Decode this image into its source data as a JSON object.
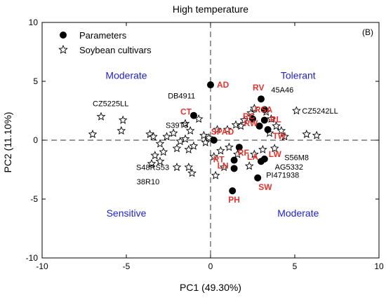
{
  "chart_data": {
    "type": "scatter",
    "title": "High temperature",
    "panel_label": "(B)",
    "xlabel": "PC1 (49.30%)",
    "ylabel": "PC2 (11.10%)",
    "xlim": [
      -10,
      10
    ],
    "ylim": [
      -10,
      10
    ],
    "xticks": [
      -10,
      -5,
      0,
      5,
      10
    ],
    "yticks": [
      -10,
      -5,
      0,
      5,
      10
    ],
    "grid": false,
    "reference_lines": {
      "x": 0,
      "y": 0,
      "style": "dashed"
    },
    "legend": {
      "placement": "top-left",
      "entries": [
        {
          "label": "Parameters",
          "marker": "filled-circle"
        },
        {
          "label": "Soybean cultivars",
          "marker": "open-star"
        }
      ]
    },
    "quadrant_labels": [
      {
        "text": "Moderate",
        "x": -5,
        "y": 5.2
      },
      {
        "text": "Tolerant",
        "x": 5.2,
        "y": 5.2
      },
      {
        "text": "Sensitive",
        "x": -5,
        "y": -6.5
      },
      {
        "text": "Moderate",
        "x": 5.2,
        "y": -6.5
      }
    ],
    "colors": {
      "parameter_label": "#e8332f",
      "quadrant_label": "#1f1fd6",
      "marker": "#000000"
    },
    "series": [
      {
        "name": "Parameters",
        "points": [
          {
            "label": "AD",
            "x": 0.0,
            "y": 4.7
          },
          {
            "label": "RV",
            "x": 3.0,
            "y": 3.5
          },
          {
            "label": "RSA",
            "x": 3.2,
            "y": 2.6
          },
          {
            "label": "CT",
            "x": -1.0,
            "y": 2.1
          },
          {
            "label": "RC",
            "x": 2.5,
            "y": 1.8
          },
          {
            "label": "RL",
            "x": 3.2,
            "y": 1.7
          },
          {
            "label": "RW",
            "x": 2.9,
            "y": 1.2
          },
          {
            "label": "TW",
            "x": 3.4,
            "y": 0.9
          },
          {
            "label": "SPAD",
            "x": 0.2,
            "y": 0.0
          },
          {
            "label": "RF",
            "x": 1.7,
            "y": -0.6
          },
          {
            "label": "LW",
            "x": 3.2,
            "y": -1.6
          },
          {
            "label": "LA",
            "x": 3.0,
            "y": -1.8
          },
          {
            "label": "RT",
            "x": 1.4,
            "y": -1.7
          },
          {
            "label": "LN",
            "x": 1.4,
            "y": -2.4
          },
          {
            "label": "SW",
            "x": 2.8,
            "y": -3.2
          },
          {
            "label": "PH",
            "x": 1.3,
            "y": -4.3
          }
        ]
      },
      {
        "name": "Soybean cultivars",
        "points": [
          {
            "x": -7.0,
            "y": 0.5
          },
          {
            "x": -6.5,
            "y": 2.0
          },
          {
            "x": -5.2,
            "y": 1.7
          },
          {
            "x": -5.3,
            "y": 0.8
          },
          {
            "x": -3.6,
            "y": 0.5
          },
          {
            "x": -3.4,
            "y": 0.3
          },
          {
            "x": -3.0,
            "y": -0.3
          },
          {
            "x": -2.6,
            "y": 0.3
          },
          {
            "x": -2.2,
            "y": 0.6
          },
          {
            "x": -1.8,
            "y": -0.1
          },
          {
            "x": -1.5,
            "y": 0.1
          },
          {
            "x": -1.2,
            "y": 0.8
          },
          {
            "x": -1.5,
            "y": 1.4
          },
          {
            "x": -0.7,
            "y": 1.8
          },
          {
            "x": -0.4,
            "y": 0.4
          },
          {
            "x": -0.1,
            "y": 0.2
          },
          {
            "x": -0.3,
            "y": -0.2
          },
          {
            "x": -1.0,
            "y": -0.5
          },
          {
            "x": -1.3,
            "y": -0.8
          },
          {
            "x": -2.0,
            "y": -0.7
          },
          {
            "x": -2.8,
            "y": -1.0
          },
          {
            "x": -3.3,
            "y": -1.3
          },
          {
            "x": -3.0,
            "y": -1.8
          },
          {
            "x": -3.5,
            "y": -2.0
          },
          {
            "x": -2.0,
            "y": -2.3
          },
          {
            "x": -1.3,
            "y": -2.3
          },
          {
            "x": -1.1,
            "y": -2.8
          },
          {
            "x": 0.3,
            "y": -3.0
          },
          {
            "x": 0.8,
            "y": -2.3
          },
          {
            "x": 0.2,
            "y": -1.4
          },
          {
            "x": 0.6,
            "y": -0.9
          },
          {
            "x": 0.4,
            "y": 0.9
          },
          {
            "x": 1.0,
            "y": 0.9
          },
          {
            "x": 1.5,
            "y": 1.3
          },
          {
            "x": 1.8,
            "y": 1.2
          },
          {
            "x": 2.0,
            "y": 1.7
          },
          {
            "x": 2.4,
            "y": 2.3
          },
          {
            "x": 2.6,
            "y": 2.7
          },
          {
            "x": 3.3,
            "y": 2.4
          },
          {
            "x": 3.6,
            "y": 1.8
          },
          {
            "x": 3.9,
            "y": 1.2
          },
          {
            "x": 3.5,
            "y": 0.6
          },
          {
            "x": 4.2,
            "y": 0.8
          },
          {
            "x": 4.4,
            "y": 0.3
          },
          {
            "x": 3.8,
            "y": -0.7
          },
          {
            "x": 3.1,
            "y": -0.8
          },
          {
            "x": 2.6,
            "y": -1.2
          },
          {
            "x": 2.3,
            "y": -2.2
          },
          {
            "x": 1.6,
            "y": -1.2
          },
          {
            "x": 1.1,
            "y": -0.6
          },
          {
            "x": 5.1,
            "y": 2.5
          },
          {
            "x": 5.7,
            "y": 0.5
          },
          {
            "x": 6.3,
            "y": 0.4
          }
        ],
        "named_points": [
          {
            "label": "CZ5225LL",
            "x": -6.5,
            "y": 2.0
          },
          {
            "label": "DB4911",
            "x": -1.2,
            "y": 3.3
          },
          {
            "label": "S39T3",
            "x": -1.5,
            "y": 1.4
          },
          {
            "label": "45A46",
            "x": 4.1,
            "y": 3.7
          },
          {
            "label": "CZ5242LL",
            "x": 5.1,
            "y": 2.5
          },
          {
            "label": "S56M8",
            "x": 6.3,
            "y": -0.8
          },
          {
            "label": "AG5332",
            "x": 3.9,
            "y": -1.9
          },
          {
            "label": "PI471938",
            "x": 3.8,
            "y": -2.7
          },
          {
            "label": "S48RS53",
            "x": -2.0,
            "y": -2.3
          },
          {
            "label": "38R10",
            "x": -1.8,
            "y": -4.0
          }
        ]
      }
    ]
  }
}
